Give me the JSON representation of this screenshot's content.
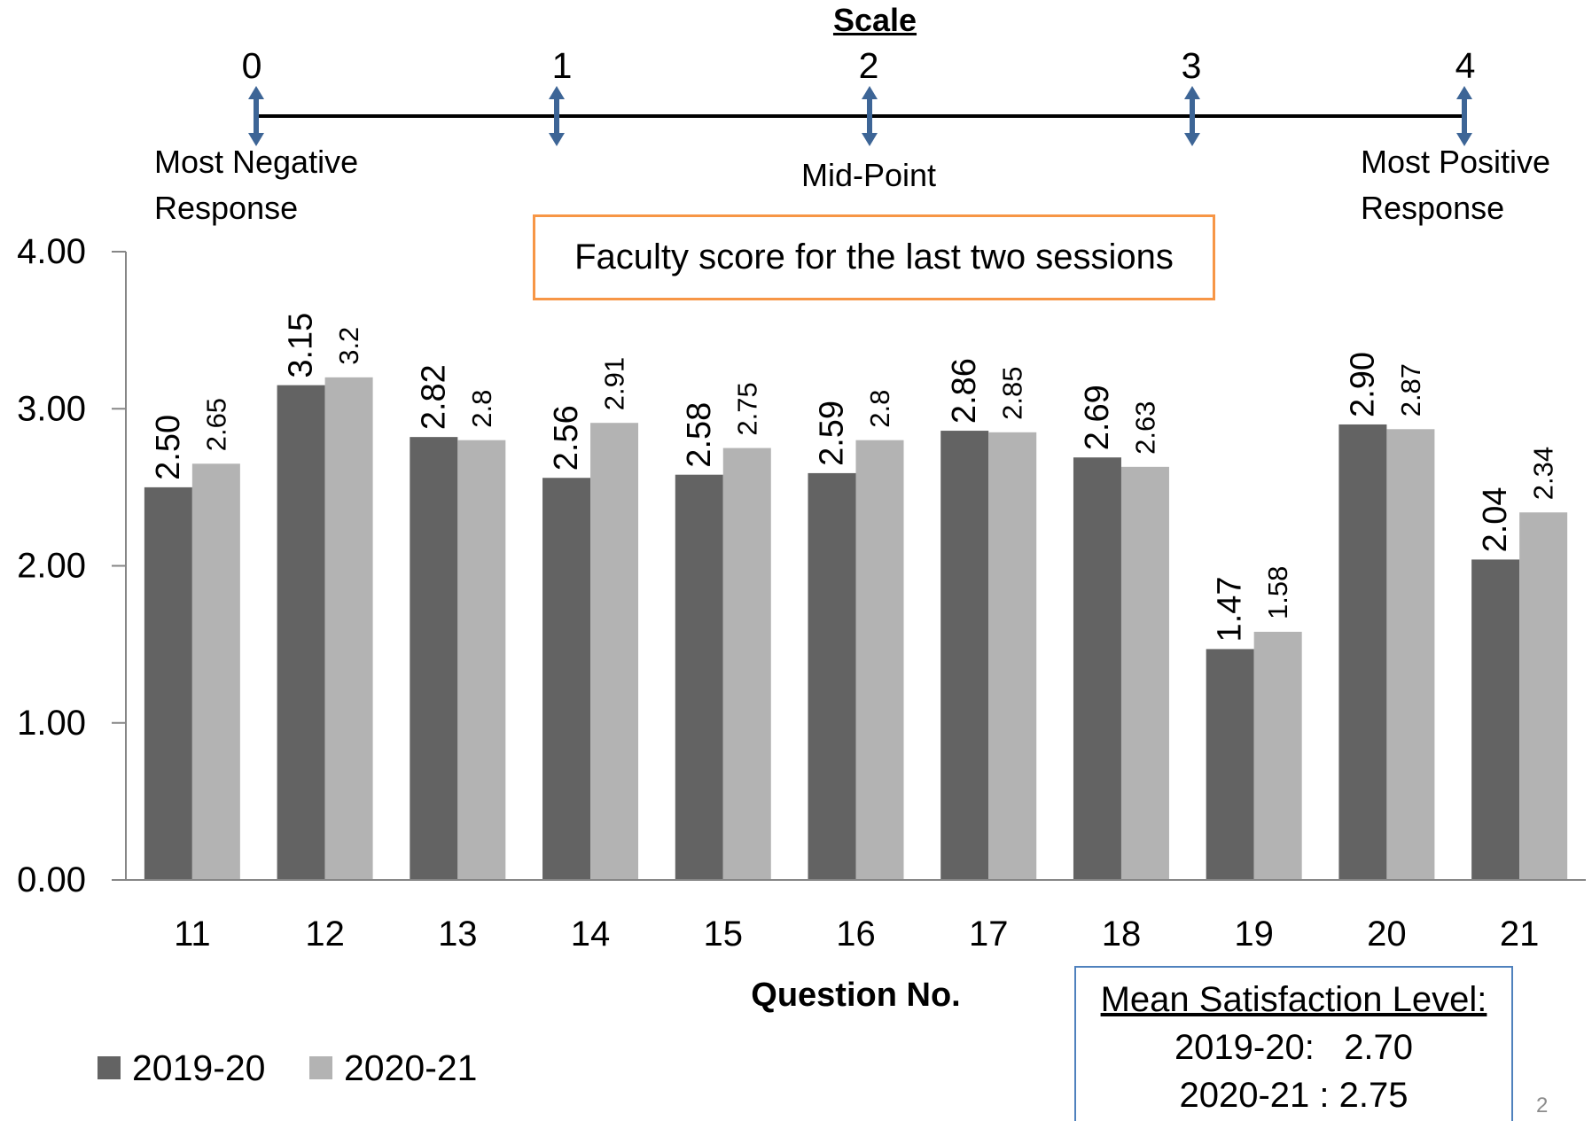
{
  "scale": {
    "title": "Scale",
    "ticks": [
      "0",
      "1",
      "2",
      "3",
      "4"
    ],
    "min_label": [
      "Most Negative",
      "Response"
    ],
    "mid_label": "Mid-Point",
    "max_label": [
      "Most Positive",
      "Response"
    ],
    "arrow_color": "#3d6596"
  },
  "callout": {
    "text": "Faculty score for the last two sessions",
    "border_color": "#f79646"
  },
  "chart_data": {
    "type": "bar",
    "categories": [
      "11",
      "12",
      "13",
      "14",
      "15",
      "16",
      "17",
      "18",
      "19",
      "20",
      "21"
    ],
    "series": [
      {
        "name": "2019-20",
        "color": "#636363",
        "values": [
          2.5,
          3.15,
          2.82,
          2.56,
          2.58,
          2.59,
          2.86,
          2.69,
          1.47,
          2.9,
          2.04
        ],
        "labels": [
          "2.50",
          "3.15",
          "2.82",
          "2.56",
          "2.58",
          "2.59",
          "2.86",
          "2.69",
          "1.47",
          "2.90",
          "2.04"
        ]
      },
      {
        "name": "2020-21",
        "color": "#b3b3b3",
        "values": [
          2.65,
          3.2,
          2.8,
          2.91,
          2.75,
          2.8,
          2.85,
          2.63,
          1.58,
          2.87,
          2.34
        ],
        "labels": [
          "2.65",
          "3.2",
          "2.8",
          "2.91",
          "2.75",
          "2.8",
          "2.85",
          "2.63",
          "1.58",
          "2.87",
          "2.34"
        ]
      }
    ],
    "xlabel": "Question No.",
    "ylim": [
      0,
      4
    ],
    "yticks": [
      "0.00",
      "1.00",
      "2.00",
      "3.00",
      "4.00"
    ],
    "grid": false,
    "legend": "bottom-left",
    "axis_color": "#868686"
  },
  "mean_box": {
    "heading": "Mean Satisfaction Level:",
    "lines": [
      "2019-20:   2.70",
      "2020-21 : 2.75"
    ],
    "border_color": "#4f81bd"
  },
  "page_number": "2"
}
